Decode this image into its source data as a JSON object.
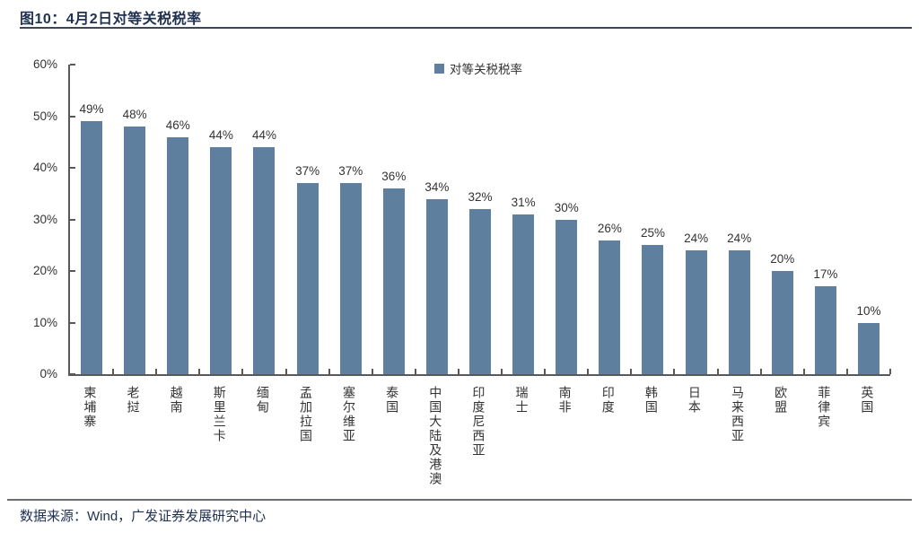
{
  "title": "图10：4月2日对等关税税率",
  "footer": {
    "source": "数据来源：Wind，广发证券发展研究中心"
  },
  "colors": {
    "bar": "#5E7F9E",
    "title_text": "#1F3050",
    "axis": "#595959",
    "label_text": "#333333"
  },
  "chart_data": {
    "type": "bar",
    "title": "图10：4月2日对等关税税率",
    "legend": "对等关税税率",
    "legend_position": "top-center",
    "categories": [
      "柬埔寨",
      "老挝",
      "越南",
      "斯里兰卡",
      "缅甸",
      "孟加拉国",
      "塞尔维亚",
      "泰国",
      "中国大陆及港澳",
      "印度尼西亚",
      "瑞士",
      "南非",
      "印度",
      "韩国",
      "日本",
      "马来西亚",
      "欧盟",
      "菲律宾",
      "英国"
    ],
    "values": [
      49,
      48,
      46,
      44,
      44,
      37,
      37,
      36,
      34,
      32,
      31,
      30,
      26,
      25,
      24,
      24,
      20,
      17,
      10
    ],
    "value_labels": [
      "49%",
      "48%",
      "46%",
      "44%",
      "44%",
      "37%",
      "37%",
      "36%",
      "34%",
      "32%",
      "31%",
      "30%",
      "26%",
      "25%",
      "24%",
      "24%",
      "20%",
      "17%",
      "10%"
    ],
    "xlabel": "",
    "ylabel": "",
    "ylim": [
      0,
      60
    ],
    "ytick_step": 10,
    "yticks": [
      "0%",
      "10%",
      "20%",
      "30%",
      "40%",
      "50%",
      "60%"
    ],
    "grid": false,
    "bar_color": "#5E7F9E"
  }
}
